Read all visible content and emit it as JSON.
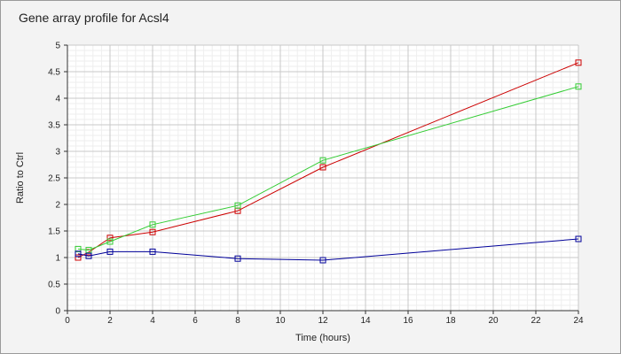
{
  "chart_data": {
    "type": "line",
    "title": "Gene array profile for Acsl4",
    "xlabel": "Time (hours)",
    "ylabel": "Ratio to Ctrl",
    "xlim": [
      0,
      24
    ],
    "ylim": [
      0,
      5
    ],
    "x_ticks": [
      0,
      2,
      4,
      6,
      8,
      10,
      12,
      14,
      16,
      18,
      20,
      22,
      24
    ],
    "y_ticks": [
      0,
      0.5,
      1,
      1.5,
      2,
      2.5,
      3,
      3.5,
      4,
      4.5,
      5
    ],
    "x_tick_labels": [
      "0",
      "2",
      "4",
      "6",
      "8",
      "10",
      "12",
      "14",
      "16",
      "18",
      "20",
      "22",
      "24"
    ],
    "y_tick_labels": [
      "0",
      "0.5",
      "1",
      "1.5",
      "2",
      "2.5",
      "3",
      "3.5",
      "4",
      "4.5",
      "5"
    ],
    "grid": true,
    "marker": "square",
    "series": [
      {
        "color": "#cc0000",
        "x": [
          0.5,
          1,
          2,
          4,
          8,
          12,
          24
        ],
        "y": [
          1.0,
          1.1,
          1.37,
          1.48,
          1.88,
          2.7,
          4.67
        ]
      },
      {
        "color": "#33cc33",
        "x": [
          0.5,
          1,
          2,
          4,
          8,
          12,
          24
        ],
        "y": [
          1.16,
          1.14,
          1.3,
          1.62,
          1.98,
          2.83,
          4.22
        ]
      },
      {
        "color": "#000099",
        "x": [
          0.5,
          1,
          2,
          4,
          8,
          12,
          24
        ],
        "y": [
          1.07,
          1.03,
          1.11,
          1.11,
          0.98,
          0.95,
          1.35
        ]
      }
    ]
  }
}
